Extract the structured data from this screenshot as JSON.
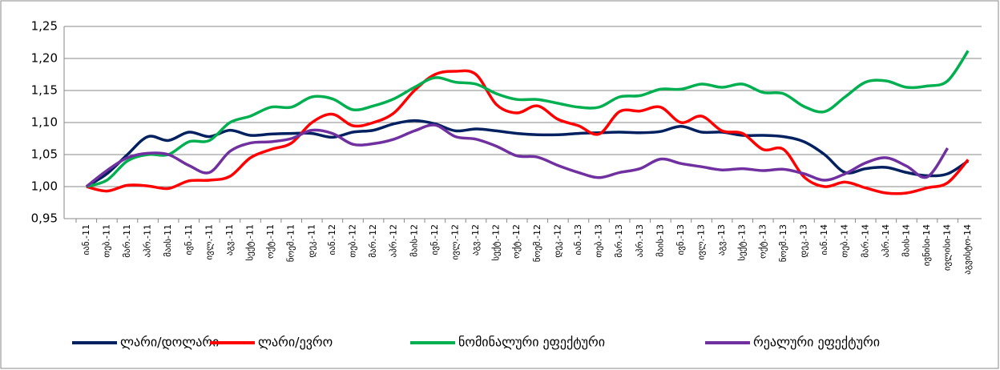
{
  "chart_data": {
    "type": "line",
    "categories": [
      "იან.-11",
      "თებ.-11",
      "მარ.-11",
      "აპრ.-11",
      "მაის-11",
      "ივნ.-11",
      "ივლ.-11",
      "აგვ.-11",
      "სექტ.-11",
      "ოქტ.-11",
      "ნოემ.-11",
      "დეკ.-11",
      "იან.-12",
      "თებ.-12",
      "მარ.-12",
      "აპრ.-12",
      "მაის-12",
      "ივნ.-12",
      "ივლ.-12",
      "აგვ.-12",
      "სექტ.-12",
      "ოქტ.-12",
      "ნოემ.-12",
      "დეკ.-12",
      "იან.-13",
      "თებ.-13",
      "მარ.-13",
      "აპრ.-13",
      "მაის-13",
      "ივნ.-13",
      "ივლ.-13",
      "აგვ.-13",
      "სექტ.-13",
      "ოქტ.-13",
      "ნოემ.-13",
      "დეკ.-13",
      "იან.-14",
      "თებ.-14",
      "მარ.-14",
      "აპრ.-14",
      "მაის-14",
      "ივნისი-14",
      "ივლისი-14",
      "აგვისტო-14"
    ],
    "series": [
      {
        "name": "ლარი/დოლარი",
        "color": "#002060",
        "values": [
          1.0,
          1.02,
          1.05,
          1.078,
          1.072,
          1.085,
          1.078,
          1.088,
          1.08,
          1.082,
          1.083,
          1.083,
          1.077,
          1.085,
          1.088,
          1.098,
          1.103,
          1.098,
          1.087,
          1.09,
          1.087,
          1.083,
          1.081,
          1.081,
          1.083,
          1.084,
          1.085,
          1.084,
          1.086,
          1.094,
          1.085,
          1.085,
          1.08,
          1.08,
          1.078,
          1.07,
          1.05,
          1.022,
          1.028,
          1.03,
          1.022,
          1.017,
          1.02,
          1.04
        ]
      },
      {
        "name": "ლარი/ევრო",
        "color": "#ff0000",
        "values": [
          1.0,
          0.993,
          1.002,
          1.001,
          0.997,
          1.009,
          1.01,
          1.016,
          1.045,
          1.058,
          1.068,
          1.1,
          1.113,
          1.095,
          1.1,
          1.115,
          1.15,
          1.175,
          1.18,
          1.175,
          1.128,
          1.115,
          1.126,
          1.105,
          1.095,
          1.082,
          1.117,
          1.118,
          1.124,
          1.1,
          1.11,
          1.087,
          1.083,
          1.058,
          1.058,
          1.015,
          1.0,
          1.007,
          0.998,
          0.99,
          0.99,
          0.998,
          1.006,
          1.042
        ]
      },
      {
        "name": "ნომინალური ეფექტური",
        "color": "#00b050",
        "values": [
          1.0,
          1.01,
          1.04,
          1.05,
          1.05,
          1.07,
          1.072,
          1.1,
          1.11,
          1.124,
          1.124,
          1.14,
          1.137,
          1.12,
          1.126,
          1.137,
          1.155,
          1.17,
          1.163,
          1.16,
          1.145,
          1.136,
          1.136,
          1.13,
          1.124,
          1.124,
          1.14,
          1.142,
          1.152,
          1.152,
          1.16,
          1.155,
          1.16,
          1.147,
          1.145,
          1.125,
          1.117,
          1.14,
          1.163,
          1.165,
          1.155,
          1.157,
          1.165,
          1.212
        ]
      },
      {
        "name": "რეალური ეფექტური",
        "color": "#7030a0",
        "values": [
          1.0,
          1.025,
          1.045,
          1.052,
          1.05,
          1.033,
          1.022,
          1.055,
          1.068,
          1.07,
          1.075,
          1.088,
          1.083,
          1.066,
          1.067,
          1.074,
          1.087,
          1.096,
          1.078,
          1.074,
          1.063,
          1.048,
          1.046,
          1.033,
          1.022,
          1.014,
          1.022,
          1.028,
          1.043,
          1.036,
          1.031,
          1.026,
          1.028,
          1.025,
          1.027,
          1.02,
          1.01,
          1.02,
          1.037,
          1.045,
          1.032,
          1.015,
          1.06,
          null
        ]
      }
    ],
    "ylim": [
      0.95,
      1.25
    ],
    "yticks": [
      {
        "value": 0.95,
        "label": "0,95"
      },
      {
        "value": 1.0,
        "label": "1,00"
      },
      {
        "value": 1.05,
        "label": "1,05"
      },
      {
        "value": 1.1,
        "label": "1,10"
      },
      {
        "value": 1.15,
        "label": "1,15"
      },
      {
        "value": 1.2,
        "label": "1,20"
      },
      {
        "value": 1.25,
        "label": "1,25"
      }
    ],
    "grid": true,
    "legend": "bottom"
  }
}
